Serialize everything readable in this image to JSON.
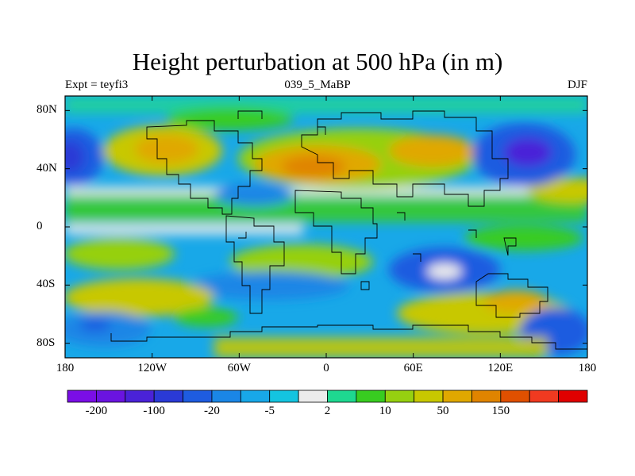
{
  "title": "Height perturbation at 500 hPa (in m)",
  "header": {
    "left": "Expt = teyfi3",
    "center": "039_5_MaBP",
    "right": "DJF"
  },
  "map": {
    "projection": "cylindrical-equidistant",
    "lon_range": [
      -180,
      180
    ],
    "lat_range": [
      -90,
      90
    ],
    "y_ticks": [
      {
        "label": "80N",
        "lat": 80
      },
      {
        "label": "40N",
        "lat": 40
      },
      {
        "label": "0",
        "lat": 0
      },
      {
        "label": "40S",
        "lat": -40
      },
      {
        "label": "80S",
        "lat": -80
      }
    ],
    "x_ticks": [
      {
        "label": "180",
        "lon": -180
      },
      {
        "label": "120W",
        "lon": -120
      },
      {
        "label": "60W",
        "lon": -60
      },
      {
        "label": "0",
        "lon": 0
      },
      {
        "label": "60E",
        "lon": 60
      },
      {
        "label": "120E",
        "lon": 120
      },
      {
        "label": "180",
        "lon": 180
      }
    ]
  },
  "colorbar": {
    "colors": [
      "#7a0ee6",
      "#6a14e0",
      "#4a22d8",
      "#2a3ad6",
      "#1e5ce0",
      "#1a86e6",
      "#18a8e8",
      "#14c4e0",
      "#ececec",
      "#1ed890",
      "#38cc20",
      "#96d010",
      "#c8c800",
      "#e0a800",
      "#e08400",
      "#e05000",
      "#f03a20",
      "#e00000"
    ],
    "labels": [
      {
        "text": "-200",
        "index": 1
      },
      {
        "text": "-100",
        "index": 3
      },
      {
        "text": "-20",
        "index": 5
      },
      {
        "text": "-5",
        "index": 7
      },
      {
        "text": "2",
        "index": 9
      },
      {
        "text": "10",
        "index": 11
      },
      {
        "text": "50",
        "index": 13
      },
      {
        "text": "150",
        "index": 15
      }
    ]
  }
}
